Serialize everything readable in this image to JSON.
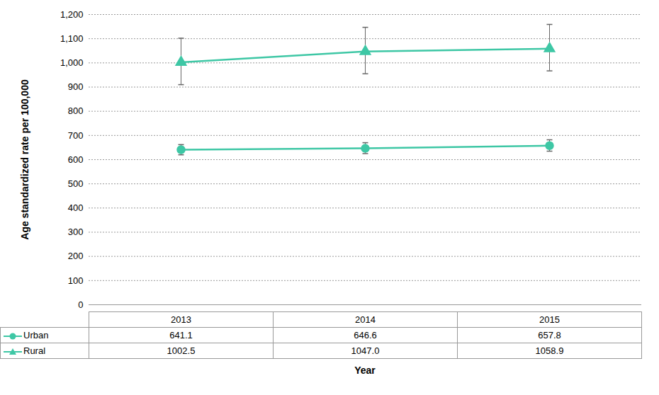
{
  "chart_data": {
    "type": "line",
    "y_label": "Age standardized rate per 100,000",
    "x_label": "Year",
    "categories": [
      "2013",
      "2014",
      "2015"
    ],
    "series": [
      {
        "name": "Urban",
        "color": "#3ec7a5",
        "marker": "circle",
        "values": [
          641.1,
          646.6,
          657.8
        ],
        "value_labels": [
          "641.1",
          "646.6",
          "657.8"
        ],
        "error_low": [
          620,
          625,
          635
        ],
        "error_high": [
          662,
          670,
          682
        ]
      },
      {
        "name": "Rural",
        "color": "#3ec7a5",
        "marker": "triangle",
        "values": [
          1002.5,
          1047.0,
          1058.9
        ],
        "value_labels": [
          "1002.5",
          "1047.0",
          "1058.9"
        ],
        "error_low": [
          910,
          955,
          967
        ],
        "error_high": [
          1102,
          1147,
          1159
        ]
      }
    ],
    "ylim": [
      0,
      1200
    ],
    "yticks": [
      0,
      100,
      200,
      300,
      400,
      500,
      600,
      700,
      800,
      900,
      {
        "value": 1000,
        "label": "1,000"
      },
      {
        "value": 1100,
        "label": "1,100"
      },
      {
        "value": 1200,
        "label": "1,200"
      }
    ],
    "grid": true
  }
}
